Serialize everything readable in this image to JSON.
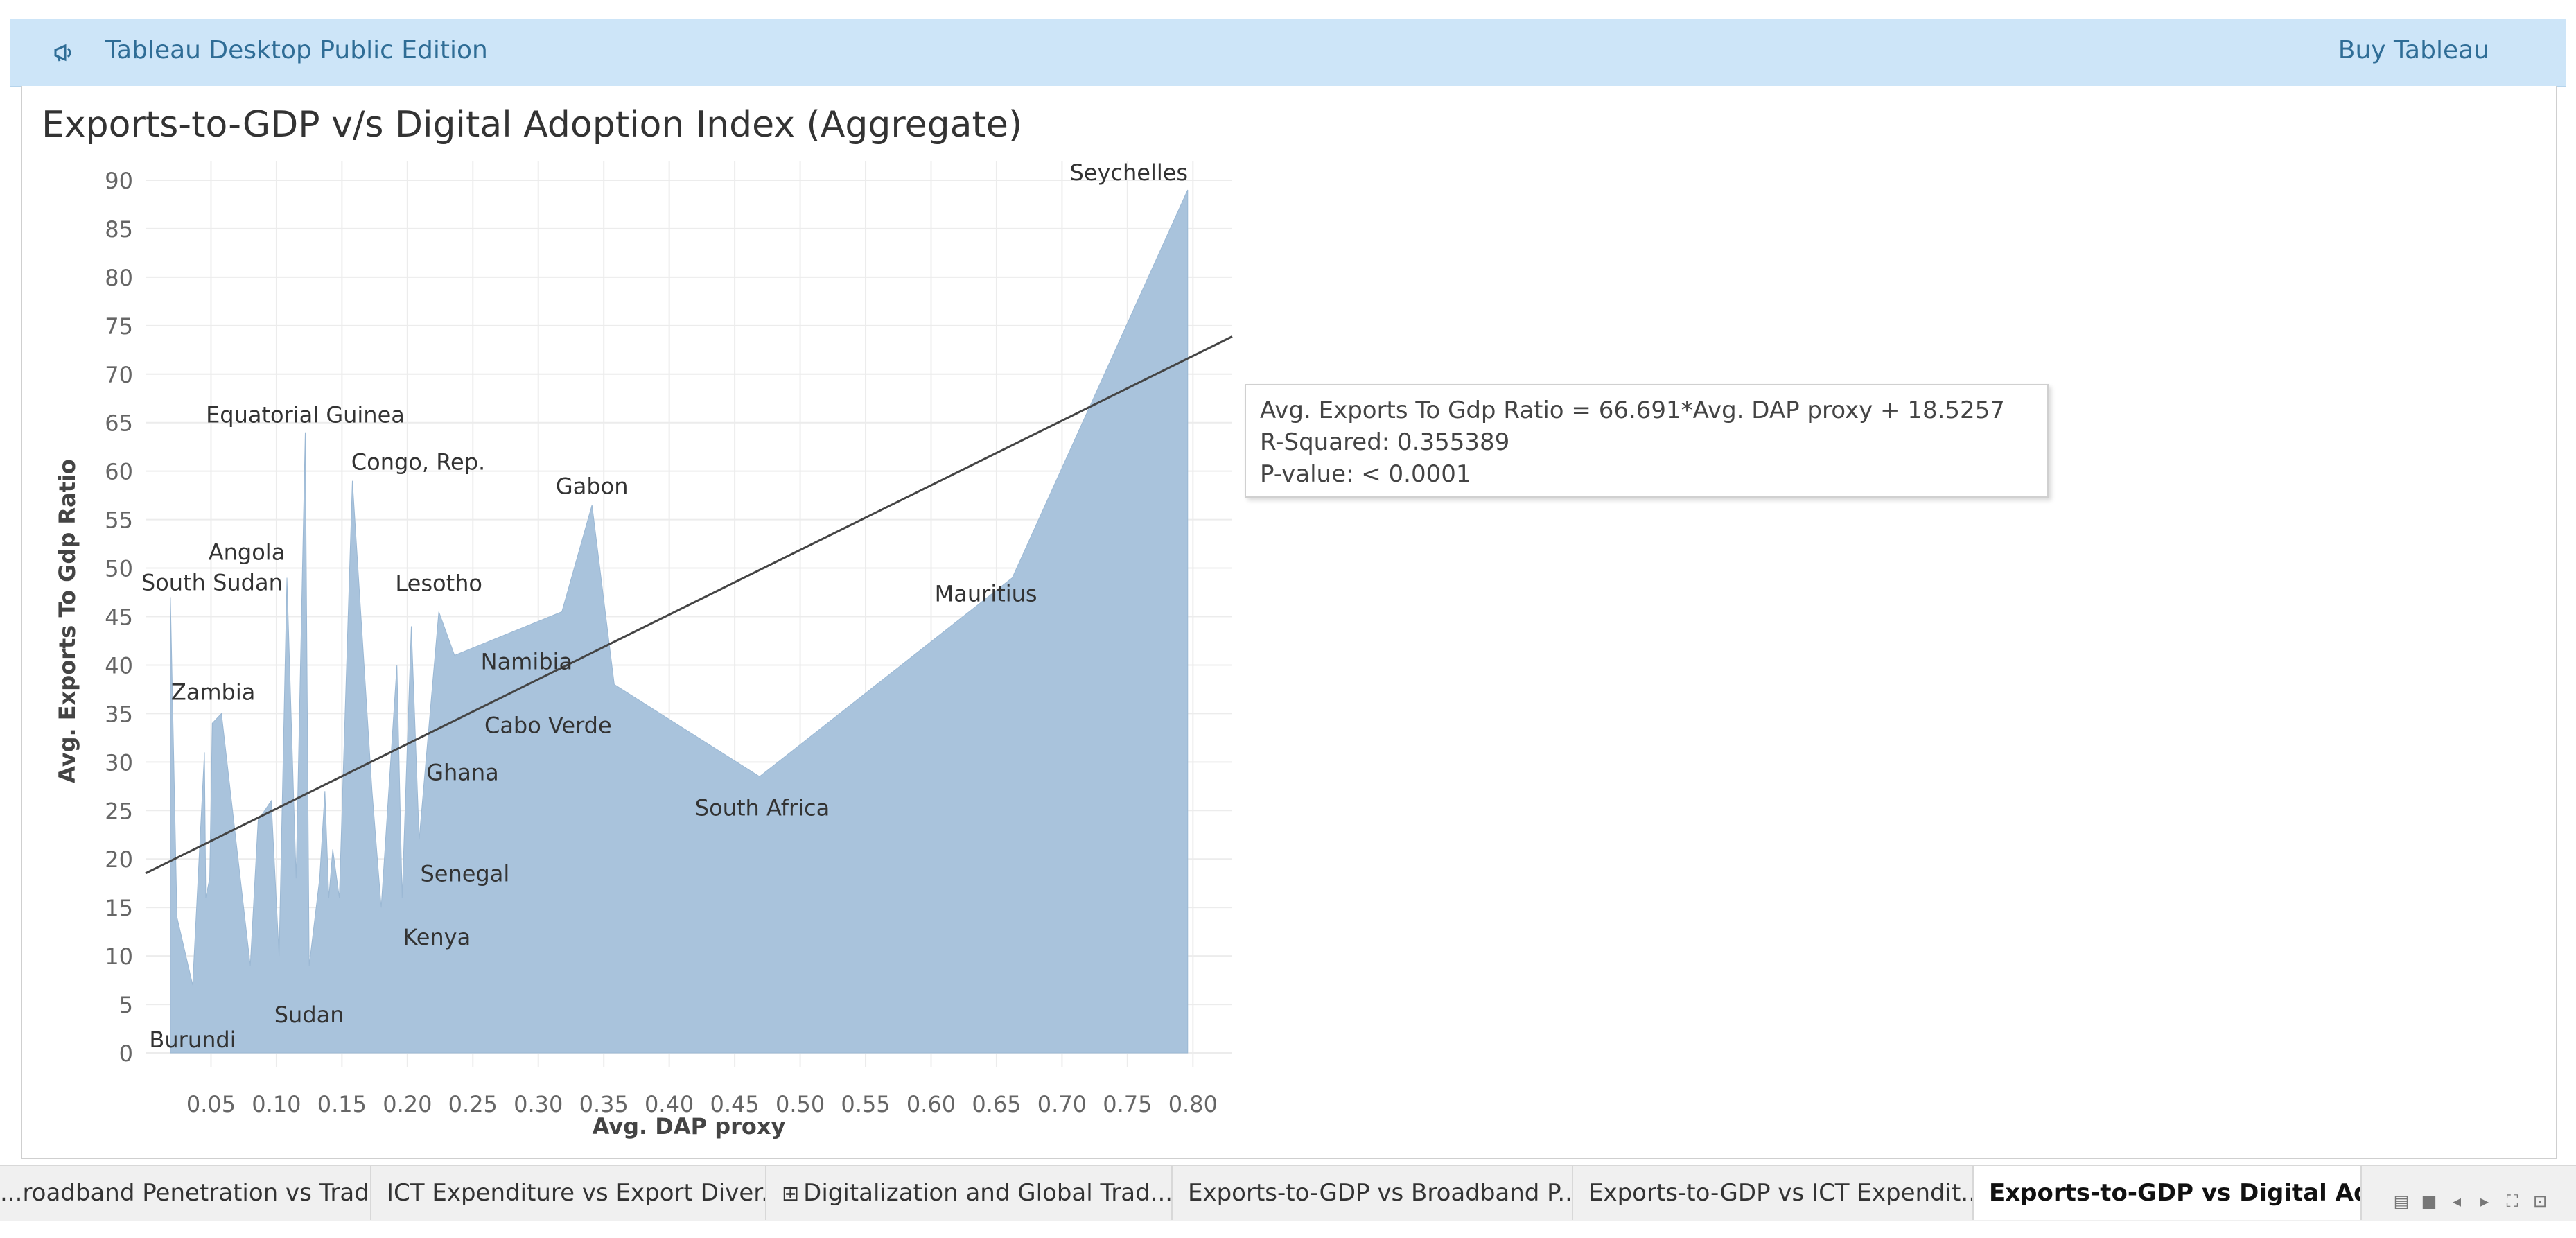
{
  "topbar": {
    "logo_icon": "tableau-megaphone-icon",
    "title": "Tableau Desktop Public Edition",
    "buy_label": "Buy Tableau"
  },
  "sheet": {
    "title": "Exports-to-GDP  v/s  Digital Adoption Index (Aggregate)"
  },
  "chart_data": {
    "type": "area",
    "xlabel": "Avg. DAP proxy",
    "ylabel": "Avg. Exports To Gdp Ratio",
    "x_ticks": [
      0.05,
      0.1,
      0.15,
      0.2,
      0.25,
      0.3,
      0.35,
      0.4,
      0.45,
      0.5,
      0.55,
      0.6,
      0.65,
      0.7,
      0.75,
      0.8
    ],
    "x_tick_labels": [
      "0.05",
      "0.10",
      "0.15",
      "0.20",
      "0.25",
      "0.30",
      "0.35",
      "0.40",
      "0.45",
      "0.50",
      "0.55",
      "0.60",
      "0.65",
      "0.70",
      "0.75",
      "0.80"
    ],
    "y_ticks": [
      0,
      5,
      10,
      15,
      20,
      25,
      30,
      35,
      40,
      45,
      50,
      55,
      60,
      65,
      70,
      75,
      80,
      85,
      90
    ],
    "xlim": [
      0,
      0.83
    ],
    "ylim": [
      -1.5,
      92
    ],
    "grid": true,
    "fill_color": "#a9c3dc",
    "points": [
      [
        0.019,
        47
      ],
      [
        0.024,
        14
      ],
      [
        0.036,
        7
      ],
      [
        0.045,
        31
      ],
      [
        0.046,
        16
      ],
      [
        0.049,
        18
      ],
      [
        0.051,
        34
      ],
      [
        0.058,
        35
      ],
      [
        0.08,
        9
      ],
      [
        0.086,
        24
      ],
      [
        0.096,
        26
      ],
      [
        0.102,
        10
      ],
      [
        0.108,
        49
      ],
      [
        0.115,
        18
      ],
      [
        0.122,
        64
      ],
      [
        0.125,
        9
      ],
      [
        0.133,
        18
      ],
      [
        0.137,
        27
      ],
      [
        0.14,
        16
      ],
      [
        0.143,
        21
      ],
      [
        0.148,
        16
      ],
      [
        0.158,
        59
      ],
      [
        0.173,
        27
      ],
      [
        0.18,
        15
      ],
      [
        0.192,
        40
      ],
      [
        0.196,
        16
      ],
      [
        0.203,
        44
      ],
      [
        0.209,
        22
      ],
      [
        0.224,
        45.5
      ],
      [
        0.236,
        41
      ],
      [
        0.318,
        45.5
      ],
      [
        0.341,
        56.5
      ],
      [
        0.358,
        38
      ],
      [
        0.469,
        28.5
      ],
      [
        0.662,
        49
      ],
      [
        0.796,
        89
      ]
    ],
    "labels": [
      {
        "text": "Seychelles",
        "x": 0.796,
        "y": 89
      },
      {
        "text": "Equatorial Guinea",
        "x": 0.122,
        "y": 64
      },
      {
        "text": "Congo, Rep.",
        "x": 0.158,
        "y": 59
      },
      {
        "text": "Gabon",
        "x": 0.341,
        "y": 56.5
      },
      {
        "text": "Angola",
        "x": 0.108,
        "y": 49
      },
      {
        "text": "South Sudan",
        "x": 0.019,
        "y": 47
      },
      {
        "text": "Lesotho",
        "x": 0.224,
        "y": 45.5
      },
      {
        "text": "Mauritius",
        "x": 0.662,
        "y": 49
      },
      {
        "text": "Namibia",
        "x": 0.236,
        "y": 41
      },
      {
        "text": "Zambia",
        "x": 0.058,
        "y": 35
      },
      {
        "text": "Cabo Verde",
        "x": 0.209,
        "y": 40
      },
      {
        "text": "Ghana",
        "x": 0.203,
        "y": 36
      },
      {
        "text": "South Africa",
        "x": 0.469,
        "y": 28.5
      },
      {
        "text": "Senegal",
        "x": 0.209,
        "y": 22
      },
      {
        "text": "Kenya",
        "x": 0.196,
        "y": 16
      },
      {
        "text": "Sudan",
        "x": 0.125,
        "y": 9
      },
      {
        "text": "Burundi",
        "x": 0.036,
        "y": 7
      }
    ],
    "trend": {
      "slope": 66.691,
      "intercept": 18.5257,
      "x_range": [
        0.0,
        0.83
      ],
      "color": "#444444"
    }
  },
  "tooltip": {
    "equation": "Avg. Exports To Gdp Ratio = 66.691*Avg. DAP proxy + 18.5257",
    "r_squared": "R-Squared: 0.355389",
    "p_value": "P-value: < 0.0001"
  },
  "tabs": [
    {
      "label": "roadband Penetration vs Trad..."
    },
    {
      "label": "ICT Expenditure vs Export Diver..."
    },
    {
      "label": "Digitalization and Global Trad...",
      "icon": "dashboard-grid-icon"
    },
    {
      "label": "Exports-to-GDP vs Broadband P..."
    },
    {
      "label": "Exports-to-GDP vs ICT Expendit..."
    },
    {
      "label": "Exports-to-GDP vs Digital Ado..."
    }
  ]
}
